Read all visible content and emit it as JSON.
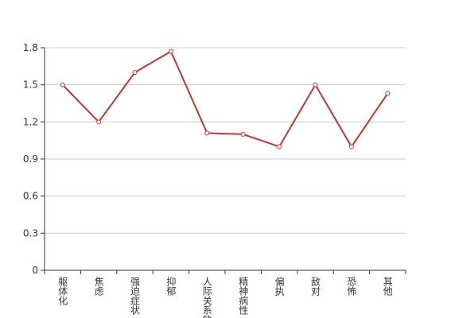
{
  "chart_data": {
    "type": "line",
    "categories": [
      "躯体化",
      "焦虑",
      "强迫症状",
      "抑郁",
      "人际关系敏感",
      "精神病性",
      "偏执",
      "敌对",
      "恐怖",
      "其他"
    ],
    "values": [
      1.5,
      1.2,
      1.6,
      1.77,
      1.11,
      1.1,
      1.0,
      1.5,
      1.0,
      1.43
    ],
    "color": "#c23531",
    "ylim": [
      0,
      1.8
    ],
    "yticks": [
      0,
      0.3,
      0.6,
      0.9,
      1.2,
      1.5,
      1.8
    ],
    "grid": true
  }
}
